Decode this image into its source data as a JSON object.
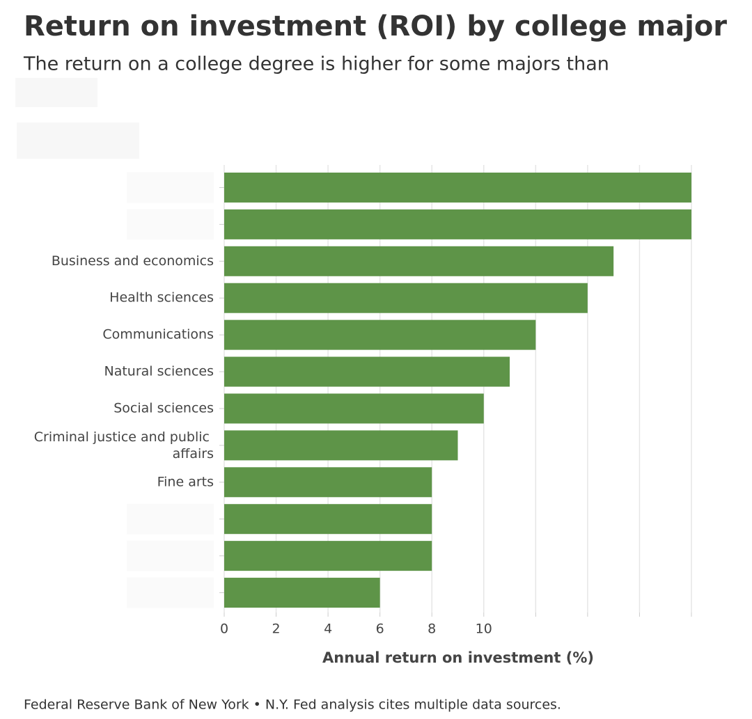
{
  "chart_data": {
    "type": "hbar",
    "title": "Return on investment (ROI) by college major",
    "subtitle": "The return on a college degree is higher for some majors than",
    "x_label": "Annual return on investment (%)",
    "source": "Federal Reserve Bank of New York • N.Y. Fed analysis cites multiple data sources.",
    "categories": [
      null,
      null,
      "Business and economics",
      "Health sciences",
      "Communications",
      "Natural sciences",
      "Social sciences",
      "Criminal justice and public affairs",
      "Fine arts",
      null,
      null,
      null
    ],
    "values": [
      18,
      18,
      15,
      14,
      12,
      11,
      10,
      9,
      8,
      8,
      8,
      6
    ],
    "color": "#5e9448",
    "xlim": [
      0,
      18
    ],
    "xticks": [
      0,
      2,
      4,
      6,
      8,
      10,
      {
        "value": 12,
        "label": null
      },
      {
        "value": 14,
        "label": null
      },
      {
        "value": 16,
        "label": null
      },
      {
        "value": 18,
        "label": null
      }
    ],
    "grid": true
  }
}
